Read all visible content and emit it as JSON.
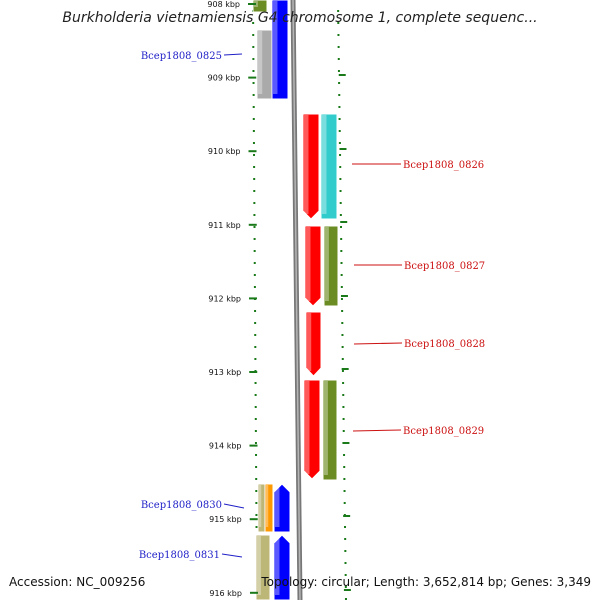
{
  "title": "Burkholderia vietnamiensis G4 chromosome 1, complete sequenc...",
  "footer": {
    "accession": "Accession: NC_009256",
    "summary": "Topology: circular; Length: 3,652,814 bp; Genes: 3,349"
  },
  "axis": {
    "ticks": [
      {
        "kbp": 908,
        "label": "908 kbp"
      },
      {
        "kbp": 909,
        "label": "909 kbp"
      },
      {
        "kbp": 910,
        "label": "910 kbp"
      },
      {
        "kbp": 911,
        "label": "911 kbp"
      },
      {
        "kbp": 912,
        "label": "912 kbp"
      },
      {
        "kbp": 913,
        "label": "913 kbp"
      },
      {
        "kbp": 914,
        "label": "914 kbp"
      },
      {
        "kbp": 915,
        "label": "915 kbp"
      },
      {
        "kbp": 916,
        "label": "916 kbp"
      }
    ]
  },
  "genes": [
    {
      "label": "Bcep1808_0825",
      "strand": "reverse",
      "color": "#1f1fc8"
    },
    {
      "label": "Bcep1808_0826",
      "strand": "forward",
      "color": "#cc1111"
    },
    {
      "label": "Bcep1808_0827",
      "strand": "forward",
      "color": "#cc1111"
    },
    {
      "label": "Bcep1808_0828",
      "strand": "forward",
      "color": "#cc1111"
    },
    {
      "label": "Bcep1808_0829",
      "strand": "forward",
      "color": "#cc1111"
    },
    {
      "label": "Bcep1808_0830",
      "strand": "reverse",
      "color": "#1f1fc8"
    },
    {
      "label": "Bcep1808_0831",
      "strand": "reverse",
      "color": "#1f1fc8"
    }
  ],
  "colors": {
    "reverse_cds": "#0000ff",
    "forward_cds": "#ff0000",
    "backbone": "#8c8c8c",
    "cyan_feature": "#33cccc",
    "olive_feature": "#6b8c23",
    "gray_feature": "#aaaaaa",
    "orange_feature": "#ff9900",
    "tan_feature": "#bcb677",
    "tick_green": "#1a7a1a"
  }
}
